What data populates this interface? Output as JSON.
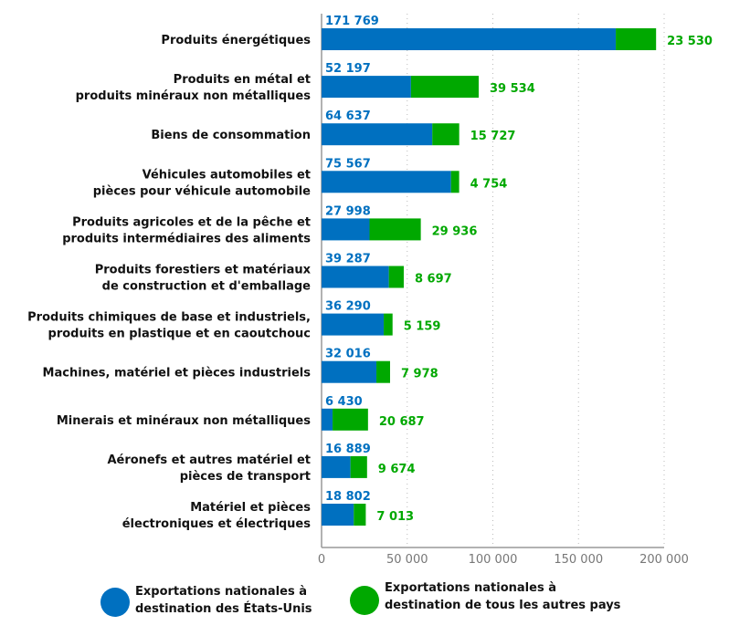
{
  "chart_data": {
    "type": "bar",
    "orientation": "horizontal",
    "stacked": true,
    "categories": [
      [
        "Produits énergétiques"
      ],
      [
        "Produits en métal et",
        "produits minéraux non métalliques"
      ],
      [
        "Biens de consommation"
      ],
      [
        "Véhicules automobiles et",
        "pièces pour véhicule automobile"
      ],
      [
        "Produits agricoles et de la pêche et",
        "produits intermédiaires des aliments"
      ],
      [
        "Produits forestiers et matériaux",
        "de construction et d'emballage"
      ],
      [
        "Produits chimiques de base et industriels,",
        "produits en plastique et en caoutchouc"
      ],
      [
        "Machines, matériel et pièces industriels"
      ],
      [
        "Minerais et minéraux non métalliques"
      ],
      [
        "Aéronefs et autres matériel et",
        "pièces de transport"
      ],
      [
        "Matériel et pièces",
        "électroniques et électriques"
      ]
    ],
    "series": [
      {
        "name": "Exportations nationales à destination des États-Unis",
        "legend_lines": [
          "Exportations nationales à",
          "destination des États-Unis"
        ],
        "color": "#0070C0",
        "values": [
          171769,
          52197,
          64637,
          75567,
          27998,
          39287,
          36290,
          32016,
          6430,
          16889,
          18802
        ],
        "labels": [
          "171 769",
          "52 197",
          "64 637",
          "75 567",
          "27 998",
          "39 287",
          "36 290",
          "32 016",
          "6 430",
          "16 889",
          "18 802"
        ]
      },
      {
        "name": "Exportations nationales à destination de tous les autres pays",
        "legend_lines": [
          "Exportations nationales à",
          "destination de tous les autres pays"
        ],
        "color": "#00A800",
        "values": [
          23530,
          39534,
          15727,
          4754,
          29936,
          8697,
          5159,
          7978,
          20687,
          9674,
          7013
        ],
        "labels": [
          "23 530",
          "39 534",
          "15 727",
          "4 754",
          "29 936",
          "8 697",
          "5 159",
          "7 978",
          "20 687",
          "9 674",
          "7 013"
        ]
      }
    ],
    "xlim": [
      0,
      200000
    ],
    "xticks": [
      0,
      50000,
      100000,
      150000,
      200000
    ],
    "xtick_labels": [
      "0",
      "50 000",
      "100 000",
      "150 000",
      "200 000"
    ],
    "grid": "vertical dotted",
    "legend_position": "bottom"
  }
}
